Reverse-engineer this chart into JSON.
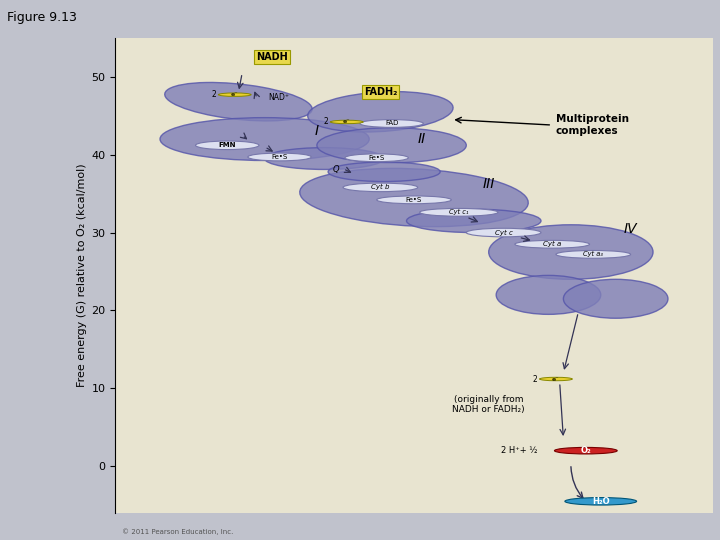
{
  "title": "Figure 9.13",
  "bg_outer": "#c0c2cc",
  "bg_inner": "#e8e4d0",
  "blob_color": "#8080b8",
  "blob_edge": "#5555aa",
  "blob_alpha": 0.82,
  "ellipse_color": "#dde0f0",
  "ellipse_edge": "#7777aa",
  "ylabel": "Free energy (G) relative to O₂ (kcal/mol)",
  "yticks": [
    0,
    10,
    20,
    30,
    40,
    50
  ],
  "ylim": [
    -6,
    55
  ],
  "xlim": [
    0,
    8
  ],
  "nadh_box_color": "#e8d84c",
  "fadh2_box_color": "#e8d84c",
  "electron_circle_color": "#e8d030",
  "o2_circle_color": "#cc2222",
  "h2o_circle_color": "#3399cc",
  "copyright": "© 2011 Pearson Education, Inc."
}
